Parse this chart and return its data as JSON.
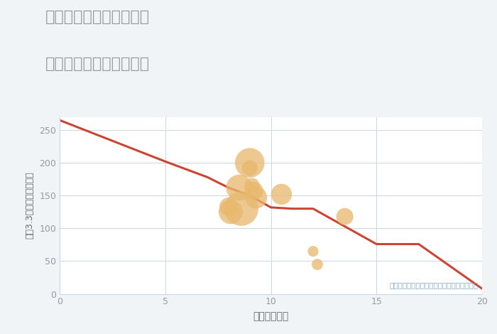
{
  "title_line1": "兵庫県西宮市上葭原町の",
  "title_line2": "駅距離別中古戸建て価格",
  "xlabel": "駅距離（分）",
  "ylabel": "坪（3.3㎡）単価（万円）",
  "background_color": "#f0f4f7",
  "plot_bg_color": "#ffffff",
  "line_points_x": [
    0,
    5,
    7,
    8,
    9,
    10,
    11,
    12,
    15,
    17,
    20
  ],
  "line_points_y": [
    265,
    202,
    178,
    162,
    150,
    132,
    130,
    130,
    76,
    76,
    8
  ],
  "line_color": "#cc4433",
  "line_width": 2.2,
  "scatter_x": [
    8.0,
    8.1,
    8.5,
    8.6,
    9.0,
    9.0,
    9.1,
    9.2,
    9.3,
    10.5,
    12.0,
    12.2,
    13.5
  ],
  "scatter_y": [
    133,
    125,
    162,
    130,
    200,
    192,
    165,
    157,
    147,
    152,
    65,
    45,
    118
  ],
  "scatter_sizes": [
    350,
    600,
    700,
    1200,
    900,
    250,
    250,
    350,
    500,
    450,
    120,
    130,
    300
  ],
  "scatter_color": "#e8b86d",
  "scatter_alpha": 0.75,
  "annotation": "円の大きさは、取引のあった物件面積を示す",
  "xlim": [
    0,
    20
  ],
  "ylim": [
    0,
    270
  ],
  "xticks": [
    0,
    5,
    10,
    15,
    20
  ],
  "yticks": [
    0,
    50,
    100,
    150,
    200,
    250
  ],
  "grid_color": "#c8d8e8",
  "title_color": "#999999",
  "axis_label_color": "#666666",
  "tick_color": "#999999",
  "annotation_color": "#7aaacc"
}
